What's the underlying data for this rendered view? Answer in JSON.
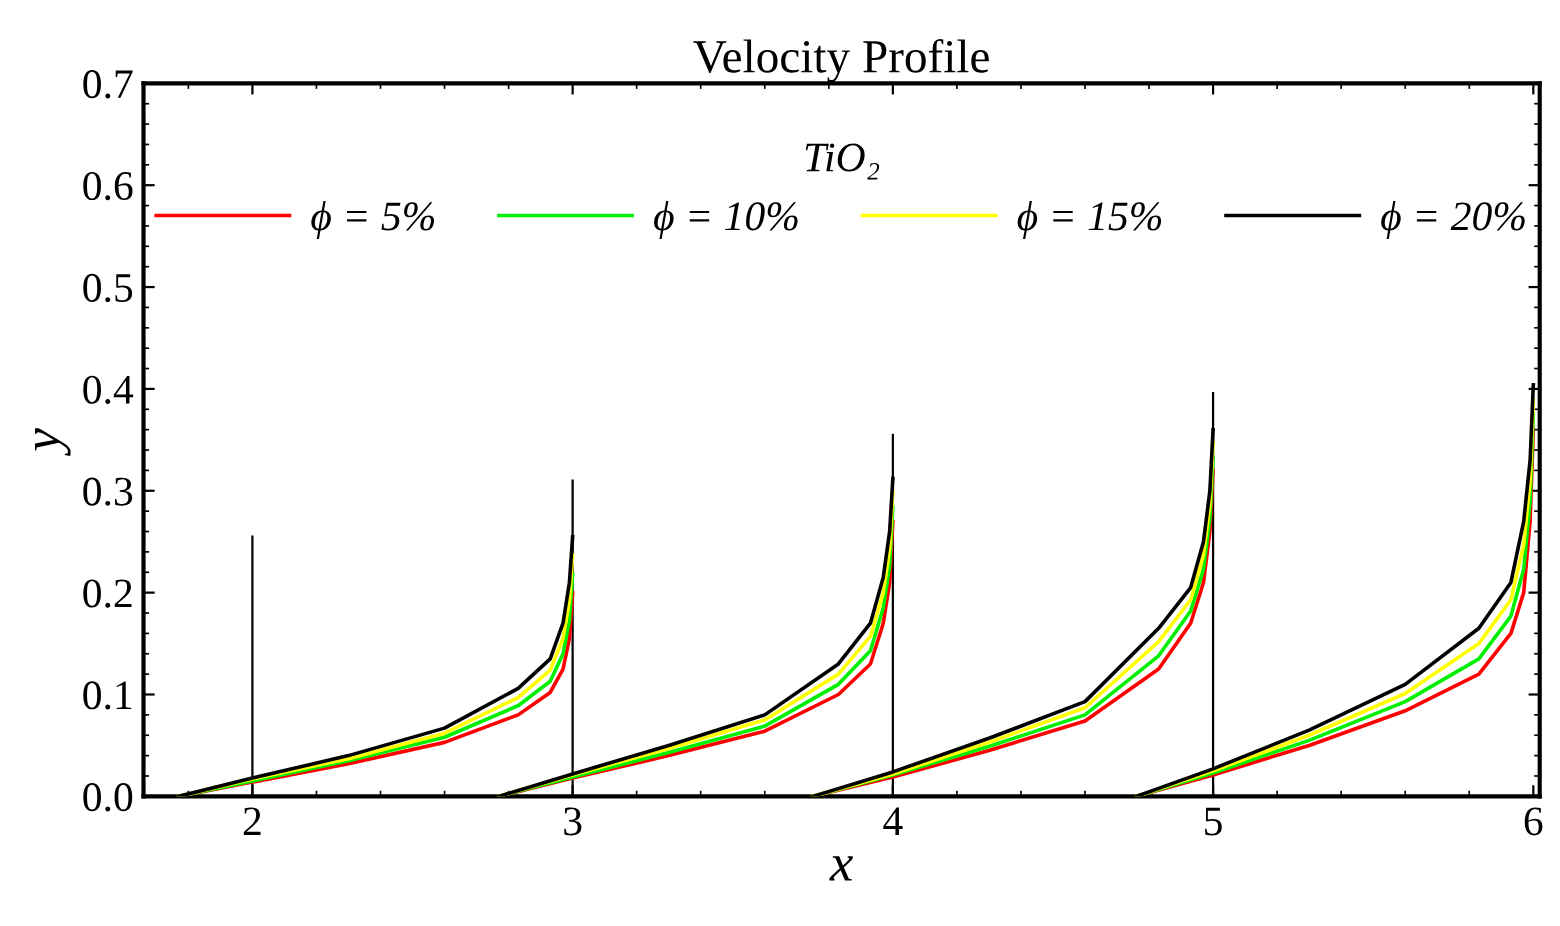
{
  "chart_data": {
    "type": "line",
    "title": "Velocity Profile",
    "xlabel": "x",
    "ylabel": "y",
    "legend_title": "TiO₂",
    "legend": "top",
    "grid": false,
    "marker": "none",
    "line_style": "solid",
    "xlim": [
      1.66,
      6.02
    ],
    "ylim": [
      0,
      0.7
    ],
    "xticks": [
      2,
      3,
      4,
      5,
      6
    ],
    "yticks": [
      {
        "value": 0,
        "label": "0.0"
      },
      {
        "value": 0.1,
        "label": "0.1"
      },
      {
        "value": 0.2,
        "label": "0.2"
      },
      {
        "value": 0.3,
        "label": "0.3"
      },
      {
        "value": 0.4,
        "label": "0.4"
      },
      {
        "value": 0.5,
        "label": "0.5"
      },
      {
        "value": 0.6,
        "label": "0.6"
      },
      {
        "value": 0.7,
        "label": "0.7"
      }
    ],
    "series": [
      {
        "name": "ϕ = 5%",
        "color": "#ff0000",
        "x": [
          1.77,
          2,
          2.3,
          2.6,
          2.83,
          2.93,
          2.97,
          2.99,
          3.0,
          null,
          2.77,
          3,
          3.3,
          3.6,
          3.83,
          3.93,
          3.97,
          3.99,
          4.0,
          null,
          3.75,
          4,
          4.3,
          4.6,
          4.83,
          4.93,
          4.97,
          4.99,
          5.0,
          null,
          4.76,
          5,
          5.3,
          5.6,
          5.83,
          5.93,
          5.97,
          5.99,
          6.0
        ],
        "values": [
          0,
          0.014,
          0.032,
          0.053,
          0.08,
          0.102,
          0.125,
          0.155,
          0.2,
          null,
          0,
          0.018,
          0.04,
          0.064,
          0.1,
          0.13,
          0.17,
          0.21,
          0.27,
          null,
          0,
          0.019,
          0.045,
          0.074,
          0.125,
          0.17,
          0.21,
          0.26,
          0.32,
          null,
          0,
          0.021,
          0.05,
          0.084,
          0.12,
          0.16,
          0.2,
          0.27,
          0.36
        ]
      },
      {
        "name": "ϕ = 10%",
        "color": "#00ee00",
        "x": [
          1.77,
          2,
          2.3,
          2.6,
          2.83,
          2.93,
          2.97,
          2.99,
          3.0,
          null,
          2.77,
          3,
          3.3,
          3.6,
          3.83,
          3.93,
          3.97,
          3.99,
          4.0,
          null,
          3.75,
          4,
          4.3,
          4.6,
          4.83,
          4.93,
          4.97,
          4.99,
          5.0,
          null,
          4.76,
          5,
          5.3,
          5.6,
          5.83,
          5.93,
          5.97,
          5.99,
          6.0
        ],
        "values": [
          0,
          0.015,
          0.035,
          0.058,
          0.089,
          0.113,
          0.14,
          0.173,
          0.218,
          null,
          0,
          0.019,
          0.043,
          0.069,
          0.11,
          0.143,
          0.185,
          0.227,
          0.284,
          null,
          0,
          0.021,
          0.049,
          0.08,
          0.138,
          0.182,
          0.223,
          0.273,
          0.333,
          null,
          0,
          0.023,
          0.055,
          0.093,
          0.135,
          0.177,
          0.223,
          0.29,
          0.375
        ]
      },
      {
        "name": "ϕ = 15%",
        "color": "#ffff00",
        "x": [
          1.77,
          2,
          2.3,
          2.6,
          2.83,
          2.93,
          2.97,
          2.99,
          3.0,
          null,
          2.77,
          3,
          3.3,
          3.6,
          3.83,
          3.93,
          3.97,
          3.99,
          4.0,
          null,
          3.75,
          4,
          4.3,
          4.6,
          4.83,
          4.93,
          4.97,
          4.99,
          5.0,
          null,
          4.76,
          5,
          5.3,
          5.6,
          5.83,
          5.93,
          5.97,
          5.99,
          6.0
        ],
        "values": [
          0,
          0.017,
          0.037,
          0.062,
          0.097,
          0.124,
          0.155,
          0.192,
          0.237,
          null,
          0,
          0.021,
          0.047,
          0.075,
          0.12,
          0.157,
          0.2,
          0.243,
          0.298,
          null,
          0,
          0.022,
          0.053,
          0.087,
          0.152,
          0.193,
          0.237,
          0.287,
          0.347,
          null,
          0,
          0.025,
          0.06,
          0.101,
          0.15,
          0.193,
          0.247,
          0.31,
          0.389
        ]
      },
      {
        "name": "ϕ = 20%",
        "color": "#000000",
        "x": [
          1.77,
          2,
          2.3,
          2.6,
          2.83,
          2.93,
          2.97,
          2.99,
          3.0,
          null,
          2.77,
          3,
          3.3,
          3.6,
          3.83,
          3.93,
          3.97,
          3.99,
          4.0,
          null,
          3.75,
          4,
          4.3,
          4.6,
          4.83,
          4.93,
          4.97,
          4.99,
          5.0,
          null,
          4.76,
          5,
          5.3,
          5.6,
          5.83,
          5.93,
          5.97,
          5.99,
          6.0
        ],
        "values": [
          0,
          0.018,
          0.04,
          0.067,
          0.106,
          0.135,
          0.17,
          0.21,
          0.255,
          null,
          0,
          0.022,
          0.05,
          0.08,
          0.13,
          0.17,
          0.215,
          0.26,
          0.312,
          null,
          0,
          0.024,
          0.057,
          0.093,
          0.165,
          0.205,
          0.25,
          0.3,
          0.36,
          null,
          0,
          0.027,
          0.065,
          0.11,
          0.165,
          0.21,
          0.27,
          0.33,
          0.404
        ]
      },
      {
        "color": "#000000",
        "x": [
          2,
          2
        ],
        "values": [
          0,
          0.255
        ]
      },
      {
        "color": "#000000",
        "x": [
          3,
          3
        ],
        "values": [
          0,
          0.31
        ]
      },
      {
        "color": "#000000",
        "x": [
          4,
          4
        ],
        "values": [
          0,
          0.355
        ]
      },
      {
        "color": "#000000",
        "x": [
          5,
          5
        ],
        "values": [
          0,
          0.396
        ]
      }
    ]
  }
}
